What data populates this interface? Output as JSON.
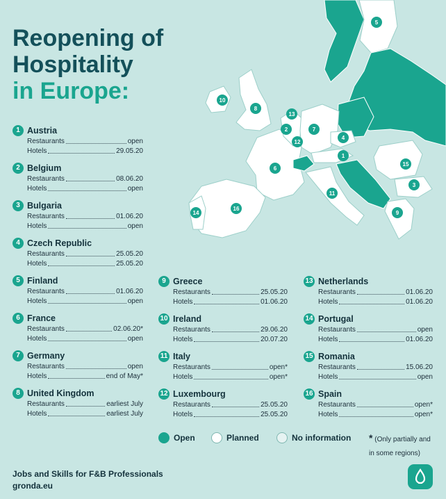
{
  "title": {
    "line1": "Reopening of",
    "line2": "Hospitality",
    "line3": "in Europe:"
  },
  "labels": {
    "restaurants": "Restaurants",
    "hotels": "Hotels"
  },
  "countries": [
    {
      "num": "1",
      "name": "Austria",
      "restaurants": "open",
      "hotels": "29.05.20"
    },
    {
      "num": "2",
      "name": "Belgium",
      "restaurants": "08.06.20",
      "hotels": "open"
    },
    {
      "num": "3",
      "name": "Bulgaria",
      "restaurants": "01.06.20",
      "hotels": "open"
    },
    {
      "num": "4",
      "name": "Czech Republic",
      "restaurants": "25.05.20",
      "hotels": "25.05.20"
    },
    {
      "num": "5",
      "name": "Finland",
      "restaurants": "01.06.20",
      "hotels": "open"
    },
    {
      "num": "6",
      "name": "France",
      "restaurants": "02.06.20*",
      "hotels": "open"
    },
    {
      "num": "7",
      "name": "Germany",
      "restaurants": "open",
      "hotels": "end of May*"
    },
    {
      "num": "8",
      "name": "United Kingdom",
      "restaurants": "earliest July",
      "hotels": "earliest July"
    },
    {
      "num": "9",
      "name": "Greece",
      "restaurants": "25.05.20",
      "hotels": "01.06.20"
    },
    {
      "num": "10",
      "name": "Ireland",
      "restaurants": "29.06.20",
      "hotels": "20.07.20"
    },
    {
      "num": "11",
      "name": "Italy",
      "restaurants": "open*",
      "hotels": "open*"
    },
    {
      "num": "12",
      "name": "Luxembourg",
      "restaurants": "25.05.20",
      "hotels": "25.05.20"
    },
    {
      "num": "13",
      "name": "Netherlands",
      "restaurants": "01.06.20",
      "hotels": "01.06.20"
    },
    {
      "num": "14",
      "name": "Portugal",
      "restaurants": "open",
      "hotels": "01.06.20"
    },
    {
      "num": "15",
      "name": "Romania",
      "restaurants": "15.06.20",
      "hotels": "open"
    },
    {
      "num": "16",
      "name": "Spain",
      "restaurants": "open*",
      "hotels": "open*"
    }
  ],
  "legend": {
    "open": "Open",
    "planned": "Planned",
    "no_info": "No information"
  },
  "note": {
    "star": "*",
    "line1": "(Only partially and",
    "line2": "in some regions)"
  },
  "footer": {
    "line1": "Jobs and Skills for F&B Professionals",
    "line2": "gronda.eu"
  },
  "colors": {
    "background": "#c8e6e3",
    "open": "#1aa58f",
    "planned": "#ffffff",
    "no_info": "#e6f3f2",
    "title": "#14505a"
  },
  "icons": {
    "logo": "droplet-icon"
  }
}
